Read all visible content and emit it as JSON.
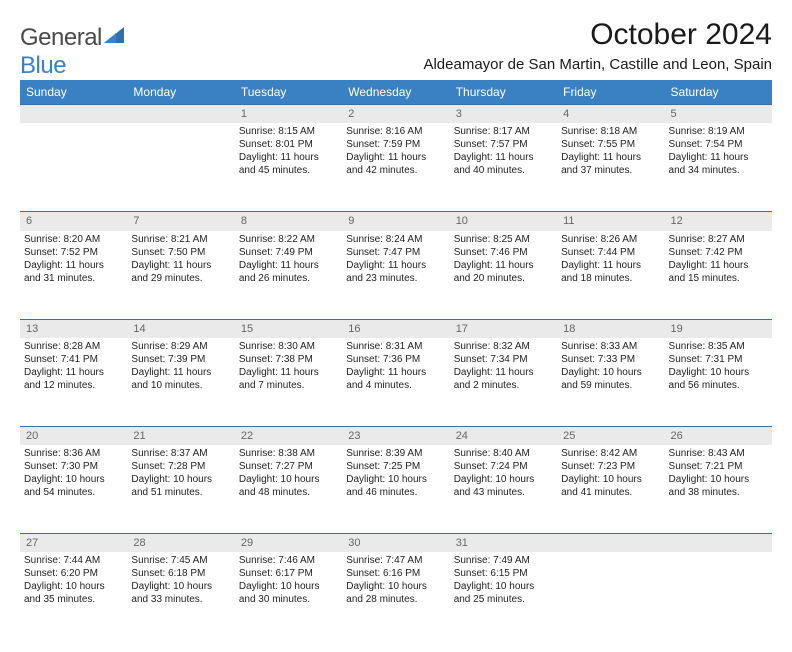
{
  "logo": {
    "word1": "General",
    "word2": "Blue"
  },
  "title": "October 2024",
  "location": "Aldeamayor de San Martin, Castille and Leon, Spain",
  "colors": {
    "header_bg": "#3a81c4",
    "header_text": "#ffffff",
    "daynum_bg": "#eaeaea",
    "daynum_text": "#666666",
    "rule": "#2f6faa",
    "body_text": "#222222"
  },
  "days_of_week": [
    "Sunday",
    "Monday",
    "Tuesday",
    "Wednesday",
    "Thursday",
    "Friday",
    "Saturday"
  ],
  "weeks": [
    {
      "nums": [
        "",
        "",
        "1",
        "2",
        "3",
        "4",
        "5"
      ],
      "cells": [
        {
          "empty": true
        },
        {
          "empty": true
        },
        {
          "sunrise": "Sunrise: 8:15 AM",
          "sunset": "Sunset: 8:01 PM",
          "day1": "Daylight: 11 hours",
          "day2": "and 45 minutes."
        },
        {
          "sunrise": "Sunrise: 8:16 AM",
          "sunset": "Sunset: 7:59 PM",
          "day1": "Daylight: 11 hours",
          "day2": "and 42 minutes."
        },
        {
          "sunrise": "Sunrise: 8:17 AM",
          "sunset": "Sunset: 7:57 PM",
          "day1": "Daylight: 11 hours",
          "day2": "and 40 minutes."
        },
        {
          "sunrise": "Sunrise: 8:18 AM",
          "sunset": "Sunset: 7:55 PM",
          "day1": "Daylight: 11 hours",
          "day2": "and 37 minutes."
        },
        {
          "sunrise": "Sunrise: 8:19 AM",
          "sunset": "Sunset: 7:54 PM",
          "day1": "Daylight: 11 hours",
          "day2": "and 34 minutes."
        }
      ]
    },
    {
      "nums": [
        "6",
        "7",
        "8",
        "9",
        "10",
        "11",
        "12"
      ],
      "cells": [
        {
          "sunrise": "Sunrise: 8:20 AM",
          "sunset": "Sunset: 7:52 PM",
          "day1": "Daylight: 11 hours",
          "day2": "and 31 minutes."
        },
        {
          "sunrise": "Sunrise: 8:21 AM",
          "sunset": "Sunset: 7:50 PM",
          "day1": "Daylight: 11 hours",
          "day2": "and 29 minutes."
        },
        {
          "sunrise": "Sunrise: 8:22 AM",
          "sunset": "Sunset: 7:49 PM",
          "day1": "Daylight: 11 hours",
          "day2": "and 26 minutes."
        },
        {
          "sunrise": "Sunrise: 8:24 AM",
          "sunset": "Sunset: 7:47 PM",
          "day1": "Daylight: 11 hours",
          "day2": "and 23 minutes."
        },
        {
          "sunrise": "Sunrise: 8:25 AM",
          "sunset": "Sunset: 7:46 PM",
          "day1": "Daylight: 11 hours",
          "day2": "and 20 minutes."
        },
        {
          "sunrise": "Sunrise: 8:26 AM",
          "sunset": "Sunset: 7:44 PM",
          "day1": "Daylight: 11 hours",
          "day2": "and 18 minutes."
        },
        {
          "sunrise": "Sunrise: 8:27 AM",
          "sunset": "Sunset: 7:42 PM",
          "day1": "Daylight: 11 hours",
          "day2": "and 15 minutes."
        }
      ]
    },
    {
      "nums": [
        "13",
        "14",
        "15",
        "16",
        "17",
        "18",
        "19"
      ],
      "cells": [
        {
          "sunrise": "Sunrise: 8:28 AM",
          "sunset": "Sunset: 7:41 PM",
          "day1": "Daylight: 11 hours",
          "day2": "and 12 minutes."
        },
        {
          "sunrise": "Sunrise: 8:29 AM",
          "sunset": "Sunset: 7:39 PM",
          "day1": "Daylight: 11 hours",
          "day2": "and 10 minutes."
        },
        {
          "sunrise": "Sunrise: 8:30 AM",
          "sunset": "Sunset: 7:38 PM",
          "day1": "Daylight: 11 hours",
          "day2": "and 7 minutes."
        },
        {
          "sunrise": "Sunrise: 8:31 AM",
          "sunset": "Sunset: 7:36 PM",
          "day1": "Daylight: 11 hours",
          "day2": "and 4 minutes."
        },
        {
          "sunrise": "Sunrise: 8:32 AM",
          "sunset": "Sunset: 7:34 PM",
          "day1": "Daylight: 11 hours",
          "day2": "and 2 minutes."
        },
        {
          "sunrise": "Sunrise: 8:33 AM",
          "sunset": "Sunset: 7:33 PM",
          "day1": "Daylight: 10 hours",
          "day2": "and 59 minutes."
        },
        {
          "sunrise": "Sunrise: 8:35 AM",
          "sunset": "Sunset: 7:31 PM",
          "day1": "Daylight: 10 hours",
          "day2": "and 56 minutes."
        }
      ]
    },
    {
      "nums": [
        "20",
        "21",
        "22",
        "23",
        "24",
        "25",
        "26"
      ],
      "cells": [
        {
          "sunrise": "Sunrise: 8:36 AM",
          "sunset": "Sunset: 7:30 PM",
          "day1": "Daylight: 10 hours",
          "day2": "and 54 minutes."
        },
        {
          "sunrise": "Sunrise: 8:37 AM",
          "sunset": "Sunset: 7:28 PM",
          "day1": "Daylight: 10 hours",
          "day2": "and 51 minutes."
        },
        {
          "sunrise": "Sunrise: 8:38 AM",
          "sunset": "Sunset: 7:27 PM",
          "day1": "Daylight: 10 hours",
          "day2": "and 48 minutes."
        },
        {
          "sunrise": "Sunrise: 8:39 AM",
          "sunset": "Sunset: 7:25 PM",
          "day1": "Daylight: 10 hours",
          "day2": "and 46 minutes."
        },
        {
          "sunrise": "Sunrise: 8:40 AM",
          "sunset": "Sunset: 7:24 PM",
          "day1": "Daylight: 10 hours",
          "day2": "and 43 minutes."
        },
        {
          "sunrise": "Sunrise: 8:42 AM",
          "sunset": "Sunset: 7:23 PM",
          "day1": "Daylight: 10 hours",
          "day2": "and 41 minutes."
        },
        {
          "sunrise": "Sunrise: 8:43 AM",
          "sunset": "Sunset: 7:21 PM",
          "day1": "Daylight: 10 hours",
          "day2": "and 38 minutes."
        }
      ]
    },
    {
      "nums": [
        "27",
        "28",
        "29",
        "30",
        "31",
        "",
        ""
      ],
      "cells": [
        {
          "sunrise": "Sunrise: 7:44 AM",
          "sunset": "Sunset: 6:20 PM",
          "day1": "Daylight: 10 hours",
          "day2": "and 35 minutes."
        },
        {
          "sunrise": "Sunrise: 7:45 AM",
          "sunset": "Sunset: 6:18 PM",
          "day1": "Daylight: 10 hours",
          "day2": "and 33 minutes."
        },
        {
          "sunrise": "Sunrise: 7:46 AM",
          "sunset": "Sunset: 6:17 PM",
          "day1": "Daylight: 10 hours",
          "day2": "and 30 minutes."
        },
        {
          "sunrise": "Sunrise: 7:47 AM",
          "sunset": "Sunset: 6:16 PM",
          "day1": "Daylight: 10 hours",
          "day2": "and 28 minutes."
        },
        {
          "sunrise": "Sunrise: 7:49 AM",
          "sunset": "Sunset: 6:15 PM",
          "day1": "Daylight: 10 hours",
          "day2": "and 25 minutes."
        },
        {
          "empty": true
        },
        {
          "empty": true
        }
      ]
    }
  ]
}
